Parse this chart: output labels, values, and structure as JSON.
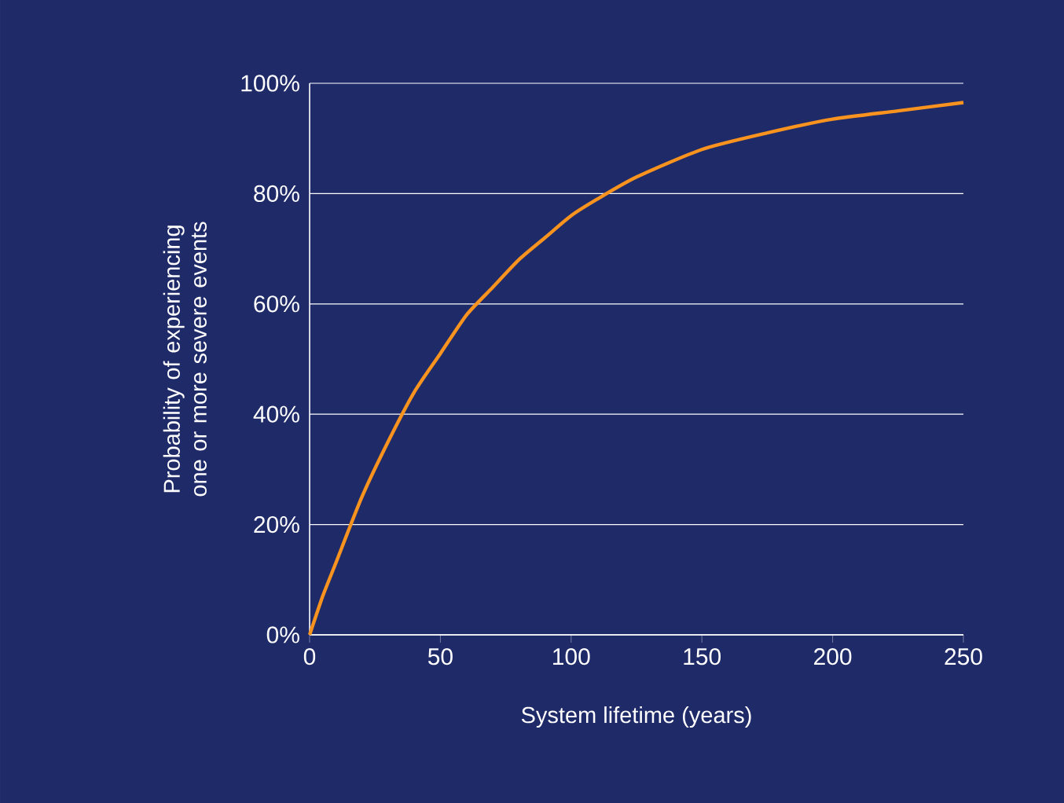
{
  "chart_data": {
    "type": "line",
    "xlabel": "System lifetime (years)",
    "ylabel": "Probability of experiencing one or more severe events",
    "x": [
      0,
      5,
      10,
      20,
      30,
      40,
      50,
      60,
      70,
      80,
      90,
      100,
      110,
      125,
      150,
      175,
      200,
      225,
      250
    ],
    "series": [
      {
        "color": "#f7931e",
        "values": [
          0,
          7,
          13,
          25,
          35,
          44,
          51,
          58,
          63,
          68,
          72,
          76,
          79,
          83,
          88,
          91,
          93.5,
          95,
          96.5
        ]
      }
    ],
    "xlim": [
      0,
      250
    ],
    "xticks": [
      0,
      50,
      100,
      150,
      200,
      250
    ],
    "ylim": [
      0,
      100
    ],
    "yticks": [
      {
        "value": 0,
        "label": "0%"
      },
      {
        "value": 20,
        "label": "20%"
      },
      {
        "value": 40,
        "label": "40%"
      },
      {
        "value": 60,
        "label": "60%"
      },
      {
        "value": 80,
        "label": "80%"
      },
      {
        "value": 100,
        "label": "100%"
      }
    ],
    "grid": "y",
    "marker": "none",
    "line_style": "solid"
  }
}
